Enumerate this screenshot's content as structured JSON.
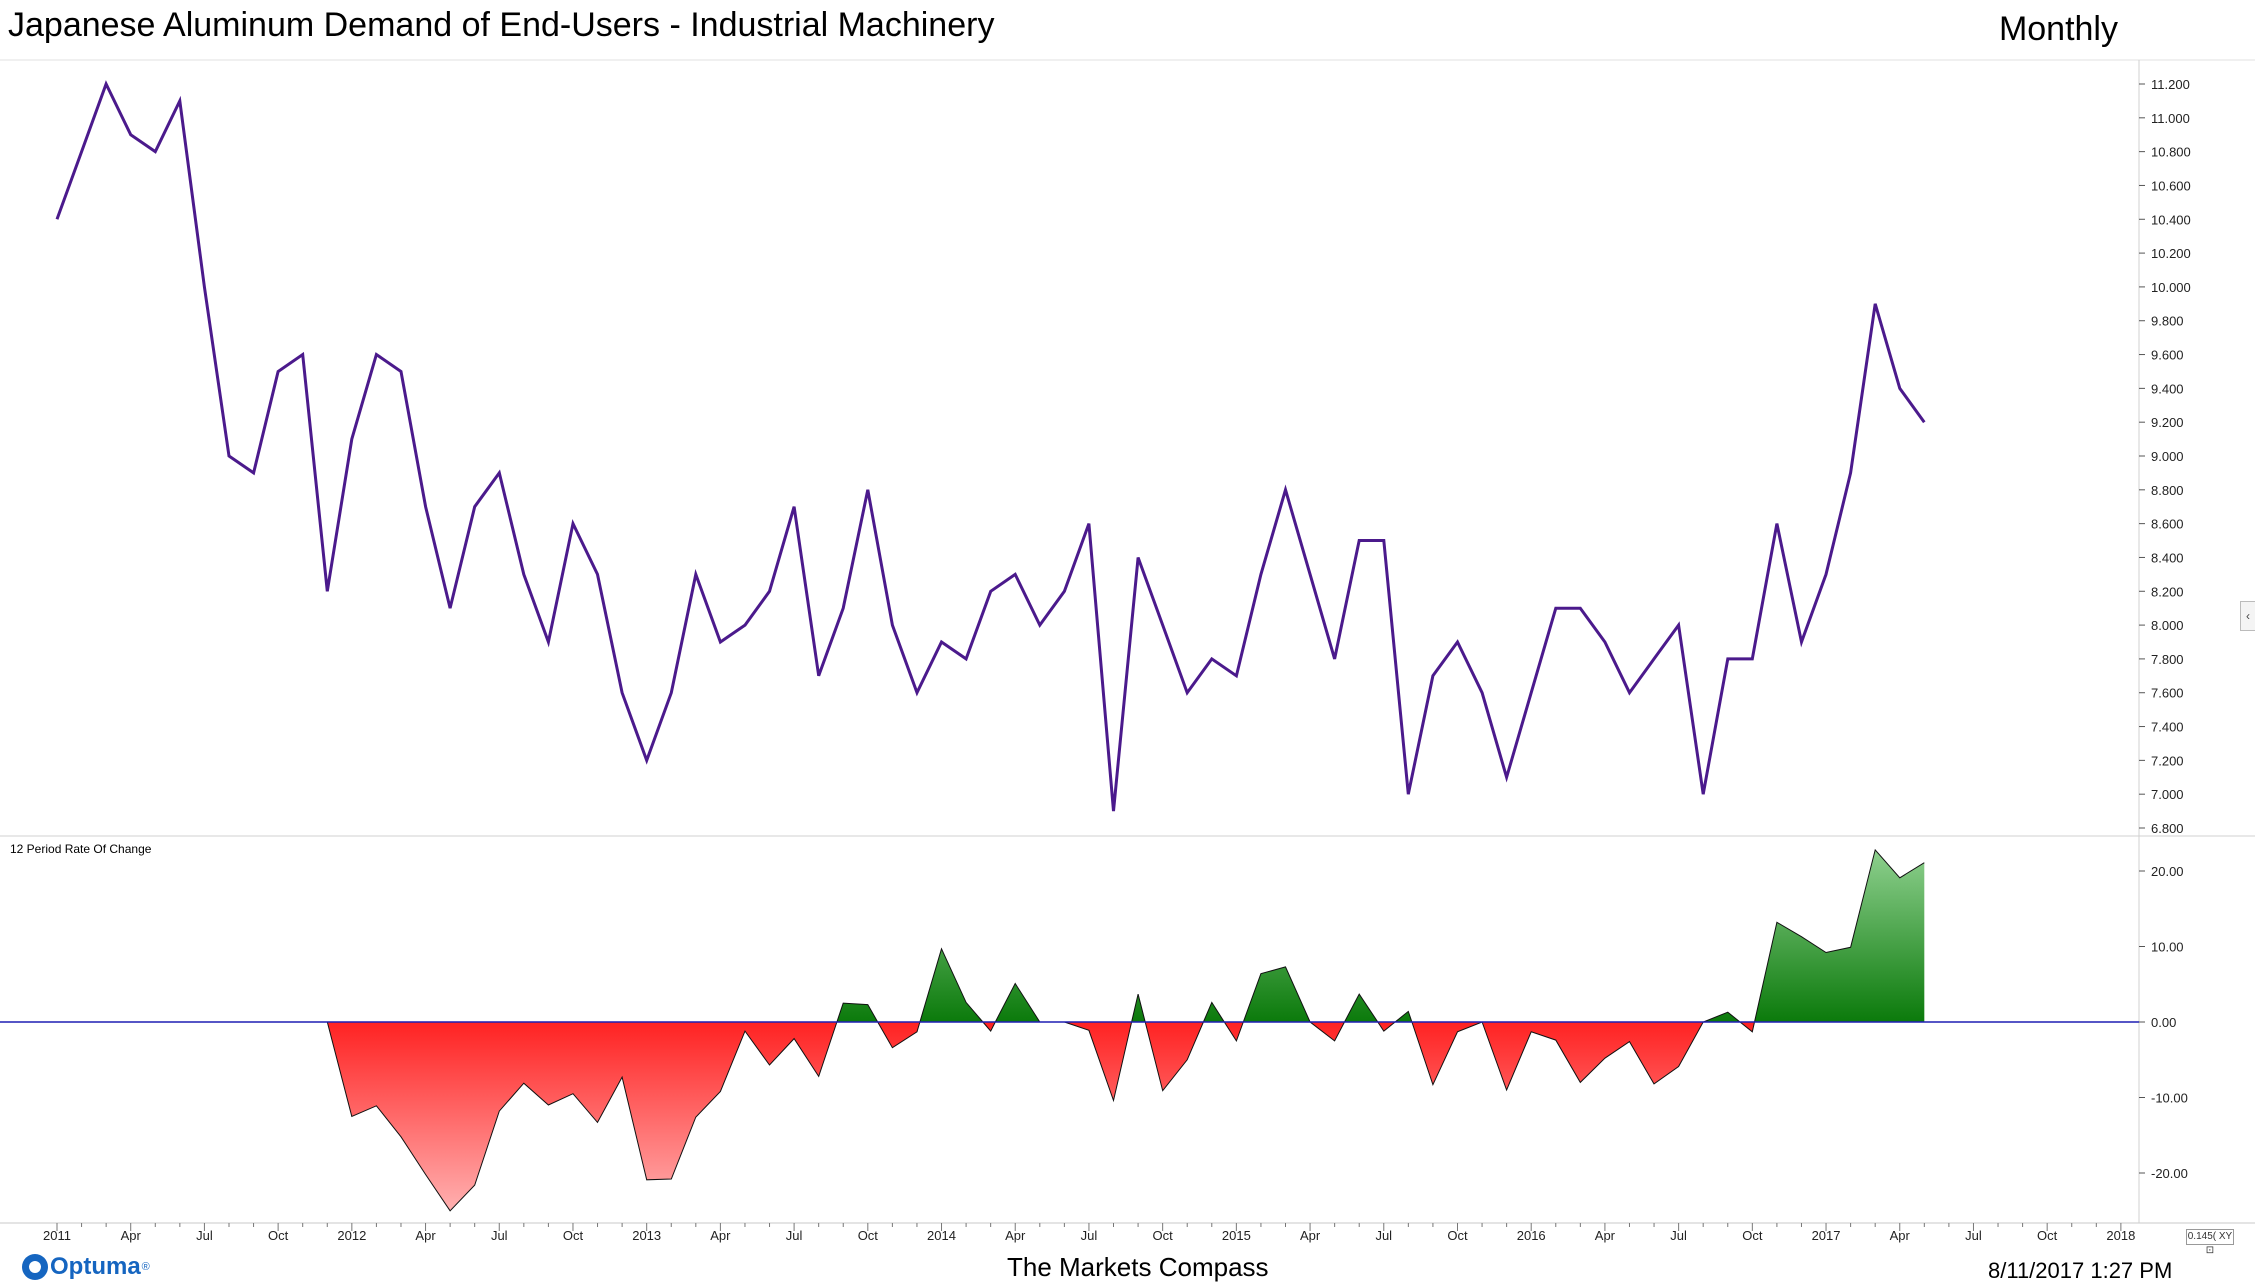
{
  "header": {
    "title": "Japanese Aluminum Demand of End-Users - Industrial Machinery",
    "period": "Monthly"
  },
  "footer": {
    "logo_text": "Optuma",
    "logo_reg": "®",
    "center_text": "The Markets Compass",
    "datetime": "8/11/2017 1:27 PM"
  },
  "controls": {
    "scale_readout": "0.145( XY ⊡",
    "collapse_glyph": "‹"
  },
  "colors": {
    "price_line": "#4b1a8c",
    "positive_fill": "#0b7a0b",
    "negative_fill": "#ff2222",
    "zero_line": "#1f1fb4"
  },
  "chart_data": [
    {
      "type": "line",
      "title": "Japanese Aluminum Demand of End-Users - Industrial Machinery",
      "series": [
        {
          "values": [
            10.4,
            10.8,
            11.2,
            10.9,
            10.8,
            11.1,
            10.0,
            9.0,
            8.9,
            9.5,
            9.6,
            8.2,
            9.1,
            9.6,
            9.5,
            8.7,
            8.1,
            8.7,
            8.9,
            8.3,
            7.9,
            8.6,
            8.3,
            7.6,
            7.2,
            7.6,
            8.3,
            7.9,
            8.0,
            8.2,
            8.7,
            7.7,
            8.1,
            8.8,
            8.0,
            7.6,
            7.9,
            7.8,
            8.2,
            8.3,
            8.0,
            8.2,
            8.6,
            6.9,
            8.4,
            8.0,
            7.6,
            7.8,
            7.7,
            8.3,
            8.8,
            8.3,
            7.8,
            8.5,
            8.5,
            7.0,
            7.7,
            7.9,
            7.6,
            7.1,
            7.6,
            8.1,
            8.1,
            7.9,
            7.6,
            7.8,
            8.0,
            7.0,
            7.8,
            7.8,
            8.6,
            7.9,
            8.3,
            8.9,
            9.9,
            9.4,
            9.2
          ]
        }
      ],
      "x_start": "2011-01",
      "x_end": "2018-01",
      "ylim": [
        6.8,
        11.2
      ],
      "y_ticks": [
        "11.200",
        "11.000",
        "10.800",
        "10.600",
        "10.400",
        "10.200",
        "10.000",
        "9.800",
        "9.600",
        "9.400",
        "9.200",
        "9.000",
        "8.800",
        "8.600",
        "8.400",
        "8.200",
        "8.000",
        "7.800",
        "7.600",
        "7.400",
        "7.200",
        "7.000",
        "6.800"
      ],
      "y_tick_values": [
        11.2,
        11.0,
        10.8,
        10.6,
        10.4,
        10.2,
        10.0,
        9.8,
        9.6,
        9.4,
        9.2,
        9.0,
        8.8,
        8.6,
        8.4,
        8.2,
        8.0,
        7.8,
        7.6,
        7.4,
        7.2,
        7.0,
        6.8
      ]
    },
    {
      "type": "area",
      "title": "12 Period Rate Of Change",
      "series": [
        {
          "values": [
            0,
            0,
            0,
            0,
            0,
            0,
            0,
            0,
            0,
            0,
            0,
            0,
            -12.5,
            -11.1,
            -15.2,
            -20.2,
            -25.0,
            -21.6,
            -11.8,
            -8.1,
            -11.0,
            -9.5,
            -13.3,
            -7.3,
            -20.9,
            -20.8,
            -12.6,
            -9.2,
            -1.2,
            -5.7,
            -2.2,
            -7.2,
            2.5,
            2.3,
            -3.4,
            -1.3,
            9.7,
            2.6,
            -1.2,
            5.1,
            0.0,
            0.0,
            -1.1,
            -10.4,
            3.7,
            -9.1,
            -5.0,
            2.6,
            -2.5,
            6.4,
            7.3,
            0.0,
            -2.5,
            3.7,
            -1.2,
            1.4,
            -8.3,
            -1.3,
            0.0,
            -9.0,
            -1.3,
            -2.4,
            -8.0,
            -4.8,
            -2.6,
            -8.2,
            -5.9,
            0.0,
            1.3,
            -1.3,
            13.2,
            11.3,
            9.2,
            9.9,
            22.8,
            19.1,
            21.1
          ]
        }
      ],
      "ylim": [
        -25,
        25
      ],
      "y_ticks": [
        "20.00",
        "10.00",
        "0.00",
        "-10.00",
        "-20.00"
      ],
      "y_tick_values": [
        20,
        10,
        0,
        -10,
        -20
      ]
    }
  ],
  "x_axis": {
    "labels": [
      "2011",
      "Apr",
      "Jul",
      "Oct",
      "2012",
      "Apr",
      "Jul",
      "Oct",
      "2013",
      "Apr",
      "Jul",
      "Oct",
      "2014",
      "Apr",
      "Jul",
      "Oct",
      "2015",
      "Apr",
      "Jul",
      "Oct",
      "2016",
      "Apr",
      "Jul",
      "Oct",
      "2017",
      "Apr",
      "Jul",
      "Oct",
      "2018"
    ]
  }
}
